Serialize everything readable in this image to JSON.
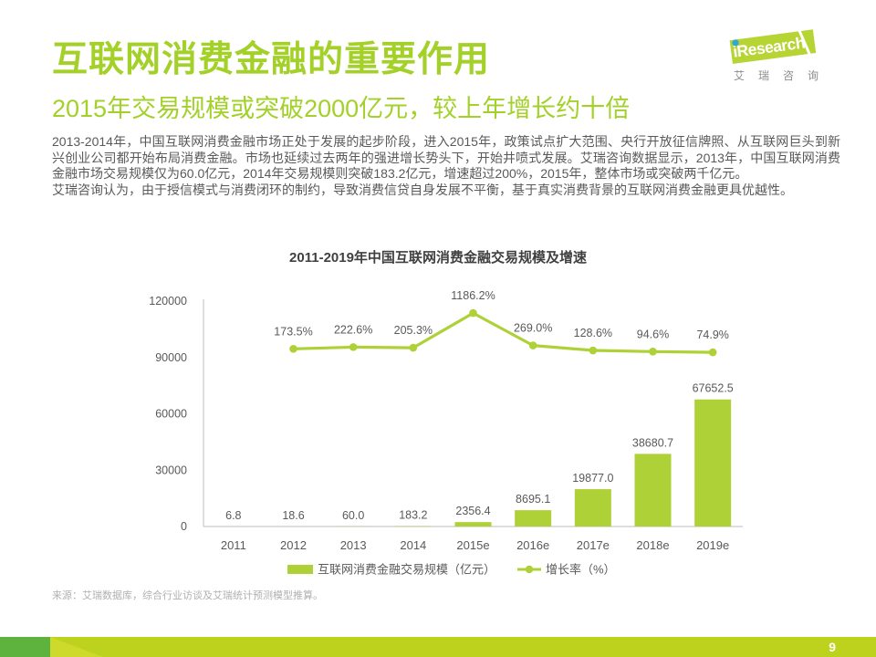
{
  "page": {
    "title": "互联网消费金融的重要作用",
    "subtitle": "2015年交易规模或突破2000亿元，较上年增长约十倍",
    "paragraphs": [
      "2013-2014年，中国互联网消费金融市场正处于发展的起步阶段，进入2015年，政策试点扩大范围、央行开放征信牌照、从互联网巨头到新兴创业公司都开始布局消费金融。市场也延续过去两年的强进增长势头下，开始井喷式发展。艾瑞咨询数据显示，2013年，中国互联网消费金融市场交易规模仅为60.0亿元，2014年交易规模则突破183.2亿元，增速超过200%，2015年，整体市场或突破两千亿元。",
      "艾瑞咨询认为，由于授信模式与消费闭环的制约，导致消费信贷自身发展不平衡，基于真实消费背景的互联网消费金融更具优越性。"
    ],
    "source_note": "来源：艾瑞数据库，综合行业访谈及艾瑞统计预测模型推算。",
    "page_number": "9"
  },
  "logo": {
    "brand": "iResearch",
    "brand_cn": "艾瑞咨询"
  },
  "chart_data": {
    "type": "bar",
    "title": "2011-2019年中国互联网消费金融交易规模及增速",
    "categories": [
      "2011",
      "2012",
      "2013",
      "2014",
      "2015e",
      "2016e",
      "2017e",
      "2018e",
      "2019e"
    ],
    "series": [
      {
        "name": "互联网消费金融交易规模（亿元）",
        "type": "bar",
        "values": [
          6.8,
          18.6,
          60.0,
          183.2,
          2356.4,
          8695.1,
          19877.0,
          38680.7,
          67652.5
        ]
      },
      {
        "name": "增长率（%）",
        "type": "line",
        "values": [
          null,
          173.5,
          222.6,
          205.3,
          1186.2,
          269.0,
          128.6,
          94.6,
          74.9
        ]
      }
    ],
    "ylabel": "",
    "xlabel": "",
    "ylim": [
      0,
      120000
    ],
    "yticks": [
      0,
      30000,
      60000,
      90000,
      120000
    ],
    "grid": false,
    "legend_position": "bottom"
  },
  "colors": {
    "heading_green": "#a3d129",
    "chart_green": "#aed137",
    "footer_green": "#bcd21d",
    "footer_dark_green": "#5db33e",
    "logo_green": "#b6d433",
    "logo_dot_blue": "#2fa8d5",
    "text_gray": "#595959",
    "axis_gray": "#c9c9c9",
    "source_gray": "#b0b0b0"
  }
}
